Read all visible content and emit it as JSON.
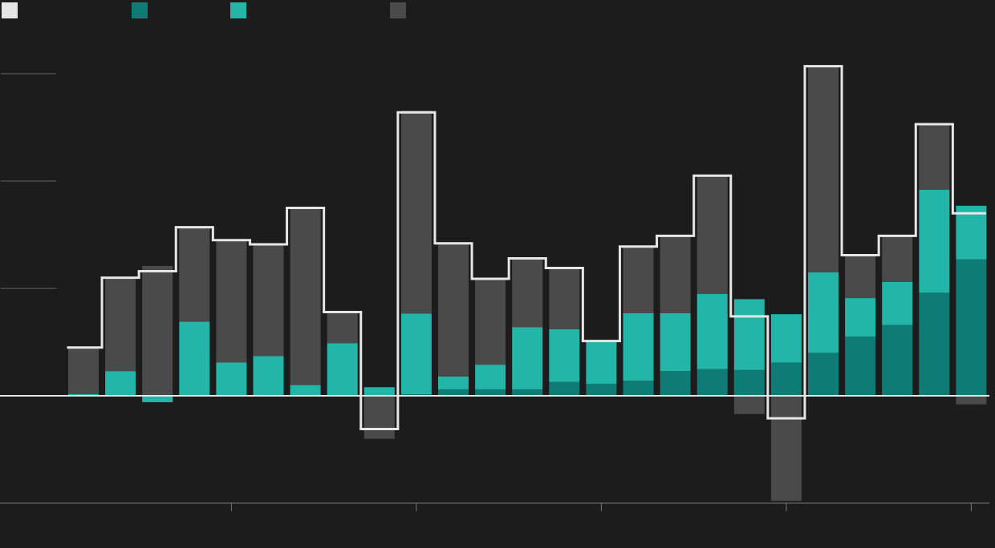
{
  "chart_data": {
    "type": "bar",
    "stacked": true,
    "x": [
      1,
      2,
      3,
      4,
      5,
      6,
      7,
      8,
      9,
      10,
      11,
      12,
      13,
      14,
      15,
      16,
      17,
      18,
      19,
      20,
      21,
      22,
      23,
      24,
      25
    ],
    "xlim": [
      -1.256,
      25.49
    ],
    "xticks": [
      5,
      10,
      15,
      20,
      25
    ],
    "ylim": [
      -1,
      3.6
    ],
    "yticks": [
      0,
      1,
      2,
      3
    ],
    "grid": true,
    "series": [
      {
        "type": "step",
        "color": "#e6e6e6",
        "values": [
          0.45,
          1.1,
          1.16,
          1.57,
          1.45,
          1.41,
          1.75,
          0.78,
          -0.31,
          2.64,
          1.42,
          1.09,
          1.28,
          1.19,
          0.51,
          1.39,
          1.49,
          2.05,
          0.74,
          -0.21,
          3.07,
          1.31,
          1.49,
          2.53,
          1.7
        ]
      },
      {
        "type": "bar",
        "color": "#0e7c74",
        "values": [
          0,
          0,
          0,
          0,
          0,
          0,
          0,
          0,
          0,
          0.015,
          0.06,
          0.06,
          0.06,
          0.13,
          0.11,
          0.14,
          0.23,
          0.25,
          0.24,
          0.31,
          0.4,
          0.55,
          0.66,
          0.96,
          1.27
        ]
      },
      {
        "type": "bar",
        "color": "#22b5a8",
        "values": [
          0.015,
          0.23,
          -0.06,
          0.69,
          0.31,
          0.37,
          0.1,
          0.49,
          0.08,
          0.75,
          0.12,
          0.23,
          0.58,
          0.49,
          0.39,
          0.63,
          0.54,
          0.7,
          0.66,
          0.45,
          0.75,
          0.36,
          0.4,
          0.96,
          0.5
        ]
      },
      {
        "type": "bar",
        "color": "#4a4a4a",
        "values": [
          0.43,
          0.87,
          1.21,
          0.88,
          1.13,
          1.04,
          1.66,
          0.29,
          -0.4,
          1.89,
          1.24,
          0.8,
          0.64,
          0.57,
          0.02,
          0.62,
          0.72,
          1.1,
          -0.17,
          -0.98,
          1.93,
          0.4,
          0.43,
          0.61,
          -0.08
        ]
      }
    ]
  }
}
